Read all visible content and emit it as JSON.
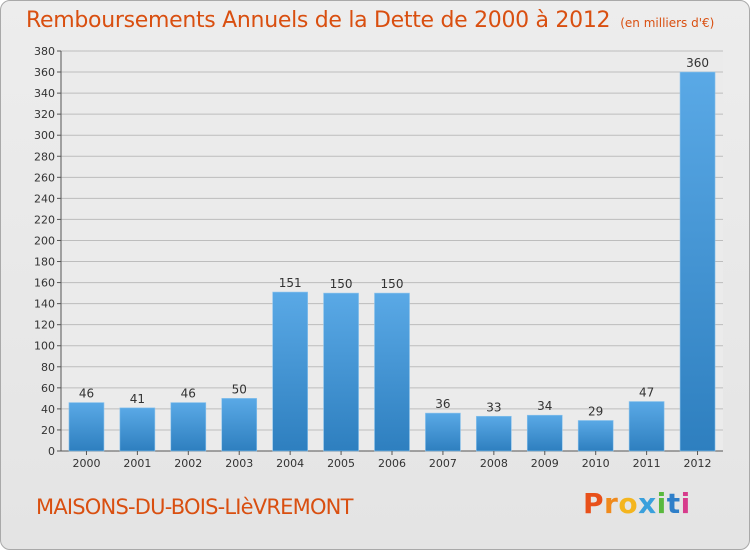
{
  "header": {
    "title": "Remboursements Annuels de la Dette de 2000 à 2012",
    "unit": "(en milliers d'€)"
  },
  "commune": "MAISONS-DU-BOIS-LIèVREMONT",
  "logo": {
    "text": "Proxiti",
    "letter_colors": [
      "#e8501a",
      "#f08a1c",
      "#f4b51e",
      "#3aa0dc",
      "#5ab93e",
      "#2f7fc9",
      "#d73c8c"
    ]
  },
  "colors": {
    "bar_light": "#5aa9e6",
    "bar_dark": "#2e7fbf",
    "title": "#d94f10",
    "grid": "#bdbdbd"
  },
  "chart_data": {
    "type": "bar",
    "title": "Remboursements Annuels de la Dette de 2000 à 2012",
    "unit": "(en milliers d'€)",
    "categories": [
      "2000",
      "2001",
      "2002",
      "2003",
      "2004",
      "2005",
      "2006",
      "2007",
      "2008",
      "2009",
      "2010",
      "2011",
      "2012"
    ],
    "values": [
      46,
      41,
      46,
      50,
      151,
      150,
      150,
      36,
      33,
      34,
      29,
      47,
      360
    ],
    "ylim": [
      0,
      380
    ],
    "ytick_step": 20,
    "grid": true
  }
}
